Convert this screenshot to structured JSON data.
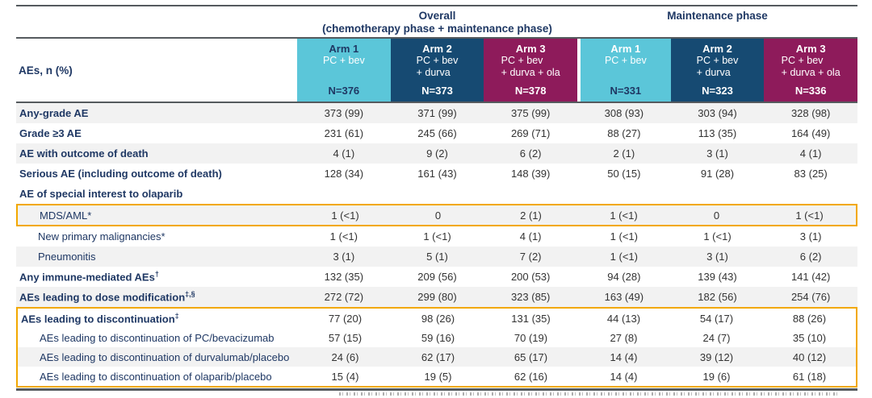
{
  "colors": {
    "navy": "#1F3864",
    "cyan": "#5BC6D9",
    "dark_blue": "#164A72",
    "maroon": "#8E1B5B",
    "highlight": "#F2A800",
    "stripe": "#F2F2F2",
    "valtext": "#333333"
  },
  "header": {
    "row_label": "AEs, n (%)",
    "phase_groups": [
      {
        "title": "Overall",
        "subtitle": "(chemotherapy phase + maintenance phase)"
      },
      {
        "title": "Maintenance phase",
        "subtitle": ""
      }
    ],
    "arms": [
      {
        "name": "Arm 1",
        "regimen_lines": [
          "PC + bev"
        ],
        "n": "N=376",
        "bg": "#5BC6D9",
        "name_color": "#1F3864",
        "regimen_color": "#FFFFFF",
        "n_color": "#1F3864"
      },
      {
        "name": "Arm 2",
        "regimen_lines": [
          "PC + bev",
          "+ durva"
        ],
        "n": "N=373",
        "bg": "#164A72",
        "name_color": "#FFFFFF",
        "regimen_color": "#FFFFFF",
        "n_color": "#FFFFFF"
      },
      {
        "name": "Arm 3",
        "regimen_lines": [
          "PC + bev",
          "+ durva + ola"
        ],
        "n": "N=378",
        "bg": "#8E1B5B",
        "name_color": "#FFFFFF",
        "regimen_color": "#FFFFFF",
        "n_color": "#FFFFFF"
      },
      {
        "name": "Arm 1",
        "regimen_lines": [
          "PC + bev"
        ],
        "n": "N=331",
        "bg": "#5BC6D9",
        "name_color": "#FFFFFF",
        "regimen_color": "#FFFFFF",
        "n_color": "#1F3864",
        "section_gap": true
      },
      {
        "name": "Arm 2",
        "regimen_lines": [
          "PC + bev",
          "+ durva"
        ],
        "n": "N=323",
        "bg": "#164A72",
        "name_color": "#FFFFFF",
        "regimen_color": "#FFFFFF",
        "n_color": "#FFFFFF"
      },
      {
        "name": "Arm 3",
        "regimen_lines": [
          "PC + bev",
          "+ durva + ola"
        ],
        "n": "N=336",
        "bg": "#8E1B5B",
        "name_color": "#FFFFFF",
        "regimen_color": "#FFFFFF",
        "n_color": "#FFFFFF"
      }
    ]
  },
  "rows": [
    {
      "label": "Any-grade AE",
      "sup": "",
      "bold": true,
      "indent": 0,
      "shade": "gray",
      "box": "",
      "values": [
        "373 (99)",
        "371 (99)",
        "375 (99)",
        "308 (93)",
        "303 (94)",
        "328 (98)"
      ]
    },
    {
      "label": "Grade ≥3 AE",
      "sup": "",
      "bold": true,
      "indent": 0,
      "shade": "white",
      "box": "",
      "values": [
        "231 (61)",
        "245 (66)",
        "269 (71)",
        "88 (27)",
        "113 (35)",
        "164 (49)"
      ]
    },
    {
      "label": "AE with outcome of death",
      "sup": "",
      "bold": true,
      "indent": 0,
      "shade": "gray",
      "box": "",
      "values": [
        "4 (1)",
        "9 (2)",
        "6 (2)",
        "2 (1)",
        "3 (1)",
        "4 (1)"
      ]
    },
    {
      "label": "Serious AE (including outcome of death)",
      "sup": "",
      "bold": true,
      "indent": 0,
      "shade": "white",
      "box": "",
      "values": [
        "128 (34)",
        "161 (43)",
        "148 (39)",
        "50 (15)",
        "91 (28)",
        "83 (25)"
      ]
    },
    {
      "label": "AE of special interest to olaparib",
      "sup": "",
      "bold": true,
      "indent": 0,
      "shade": "white",
      "box": "",
      "values": [
        "",
        "",
        "",
        "",
        "",
        ""
      ]
    },
    {
      "label": "MDS/AML*",
      "sup": "",
      "bold": false,
      "indent": 1,
      "shade": "gray",
      "box": "mds",
      "values": [
        "1 (<1)",
        "0",
        "2 (1)",
        "1 (<1)",
        "0",
        "1 (<1)"
      ]
    },
    {
      "label": "New primary malignancies*",
      "sup": "",
      "bold": false,
      "indent": 1,
      "shade": "white",
      "box": "",
      "values": [
        "1 (<1)",
        "1 (<1)",
        "4 (1)",
        "1 (<1)",
        "1 (<1)",
        "3 (1)"
      ]
    },
    {
      "label": "Pneumonitis",
      "sup": "",
      "bold": false,
      "indent": 1,
      "shade": "gray",
      "box": "",
      "values": [
        "3 (1)",
        "5 (1)",
        "7 (2)",
        "1 (<1)",
        "3 (1)",
        "6 (2)"
      ]
    },
    {
      "label": "Any immune-mediated AEs",
      "sup": "†",
      "bold": true,
      "indent": 0,
      "shade": "white",
      "box": "",
      "values": [
        "132 (35)",
        "209 (56)",
        "200 (53)",
        "94 (28)",
        "139 (43)",
        "141 (42)"
      ]
    },
    {
      "label": "AEs leading to dose modification",
      "sup": "‡,§",
      "bold": true,
      "indent": 0,
      "shade": "gray",
      "box": "",
      "values": [
        "272 (72)",
        "299 (80)",
        "323 (85)",
        "163 (49)",
        "182 (56)",
        "254 (76)"
      ]
    },
    {
      "label": "AEs leading to discontinuation",
      "sup": "‡",
      "bold": true,
      "indent": 0,
      "shade": "white",
      "box": "disc",
      "values": [
        "77 (20)",
        "98 (26)",
        "131 (35)",
        "44 (13)",
        "54 (17)",
        "88 (26)"
      ]
    },
    {
      "label": "AEs leading to discontinuation of PC/bevacizumab",
      "sup": "",
      "bold": false,
      "indent": 1,
      "shade": "white",
      "box": "disc",
      "values": [
        "57 (15)",
        "59 (16)",
        "70 (19)",
        "27 (8)",
        "24 (7)",
        "35 (10)"
      ]
    },
    {
      "label": "AEs leading to discontinuation of durvalumab/placebo",
      "sup": "",
      "bold": false,
      "indent": 1,
      "shade": "gray",
      "box": "disc",
      "values": [
        "24 (6)",
        "62 (17)",
        "65 (17)",
        "14 (4)",
        "39 (12)",
        "40 (12)"
      ]
    },
    {
      "label": "AEs leading to discontinuation of olaparib/placebo",
      "sup": "",
      "bold": false,
      "indent": 1,
      "shade": "white",
      "box": "disc",
      "values": [
        "15 (4)",
        "19 (5)",
        "62 (16)",
        "14 (4)",
        "19 (6)",
        "61 (18)"
      ]
    }
  ]
}
